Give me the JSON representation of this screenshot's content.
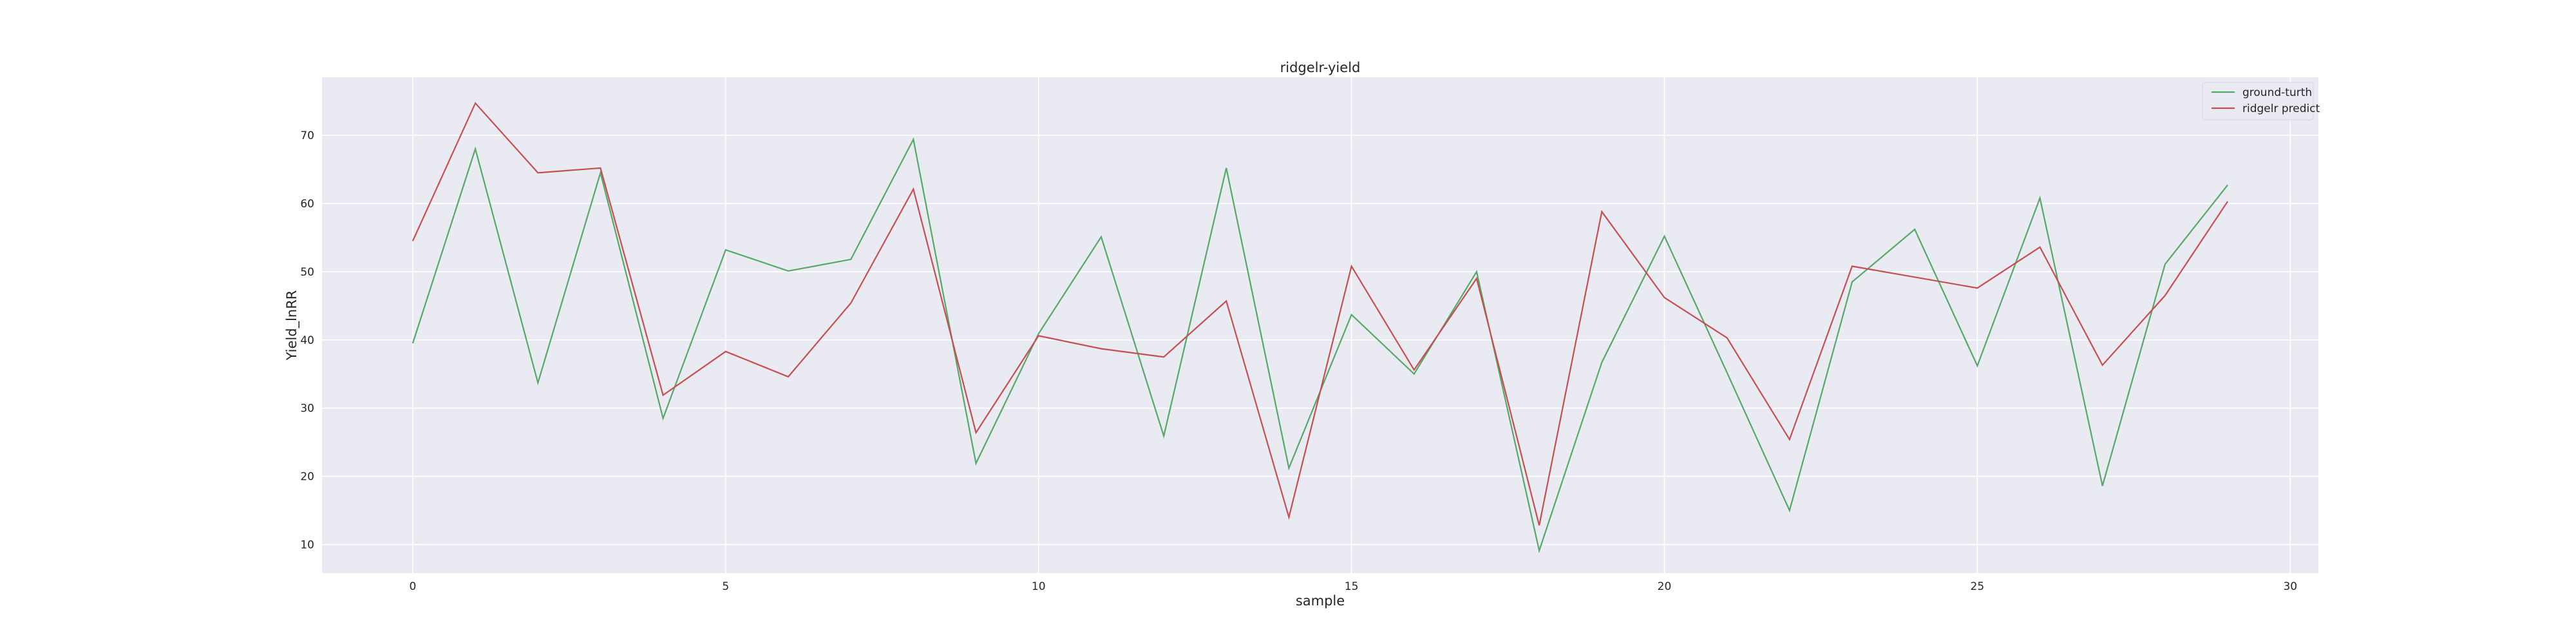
{
  "chart_data": {
    "type": "line",
    "title": "ridgelr-yield",
    "xlabel": "sample",
    "ylabel": "Yield_lnRR",
    "xlim": [
      -1.45,
      30.45
    ],
    "ylim": [
      5.8,
      78.5
    ],
    "xticks": [
      0,
      5,
      10,
      15,
      20,
      25,
      30
    ],
    "yticks": [
      10,
      20,
      30,
      40,
      50,
      60,
      70
    ],
    "grid": true,
    "legend_position": "top-right",
    "x": [
      0,
      1,
      2,
      3,
      4,
      5,
      6,
      7,
      8,
      9,
      10,
      11,
      12,
      13,
      14,
      15,
      16,
      17,
      18,
      19,
      20,
      21,
      22,
      23,
      24,
      25,
      26,
      27,
      28,
      29
    ],
    "series": [
      {
        "name": "ground-turth",
        "color": "#55a868",
        "values": [
          39.5,
          68.0,
          33.7,
          64.5,
          28.5,
          53.2,
          50.1,
          51.8,
          69.4,
          21.9,
          40.9,
          55.1,
          25.9,
          65.2,
          21.2,
          43.7,
          35.0,
          50.0,
          9.1,
          36.7,
          55.2,
          35.2,
          15.0,
          48.5,
          56.2,
          36.2,
          60.8,
          18.6,
          51.1,
          62.7
        ]
      },
      {
        "name": "ridgelr predict",
        "color": "#c44e52",
        "values": [
          54.5,
          74.7,
          64.5,
          65.2,
          31.9,
          38.3,
          34.6,
          45.4,
          62.1,
          26.4,
          40.6,
          38.7,
          37.5,
          45.7,
          14.0,
          50.8,
          35.6,
          49.0,
          12.8,
          58.8,
          46.2,
          40.3,
          25.4,
          50.8,
          49.2,
          47.6,
          53.6,
          36.3,
          46.5,
          60.3
        ]
      }
    ]
  }
}
